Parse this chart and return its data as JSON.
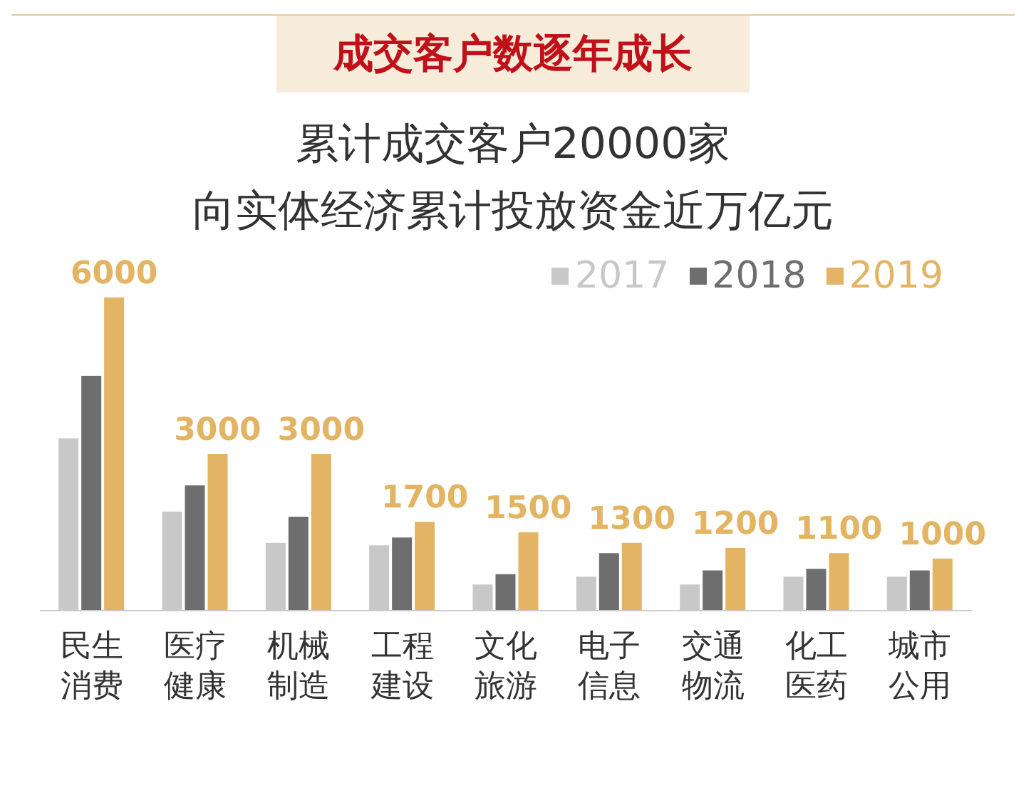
{
  "chart_data": {
    "type": "bar",
    "title": "成交客户数逐年成长",
    "subtitle": "累计成交客户20000家",
    "annotations": [
      "向实体经济累计投放资金近万亿元"
    ],
    "categories": [
      "民生消费",
      "医疗健康",
      "机械制造",
      "工程建设",
      "文化旅游",
      "电子信息",
      "交通物流",
      "化工医药",
      "城市公用"
    ],
    "series": [
      {
        "name": "2017",
        "color": "#c8c8c8",
        "values": [
          3300,
          1900,
          1300,
          1250,
          500,
          650,
          500,
          650,
          650
        ]
      },
      {
        "name": "2018",
        "color": "#6e6e6e",
        "values": [
          4500,
          2400,
          1800,
          1400,
          700,
          1100,
          770,
          800,
          770
        ]
      },
      {
        "name": "2019",
        "color": "#e2b463",
        "values": [
          6000,
          3000,
          3000,
          1700,
          1500,
          1300,
          1200,
          1100,
          1000
        ],
        "value_labels": [
          "6000",
          "3000",
          "3000",
          "1700",
          "1500",
          "1300",
          "1200",
          "1100",
          "1000"
        ]
      }
    ],
    "legend": "top right",
    "tick_labels": "x"
  }
}
